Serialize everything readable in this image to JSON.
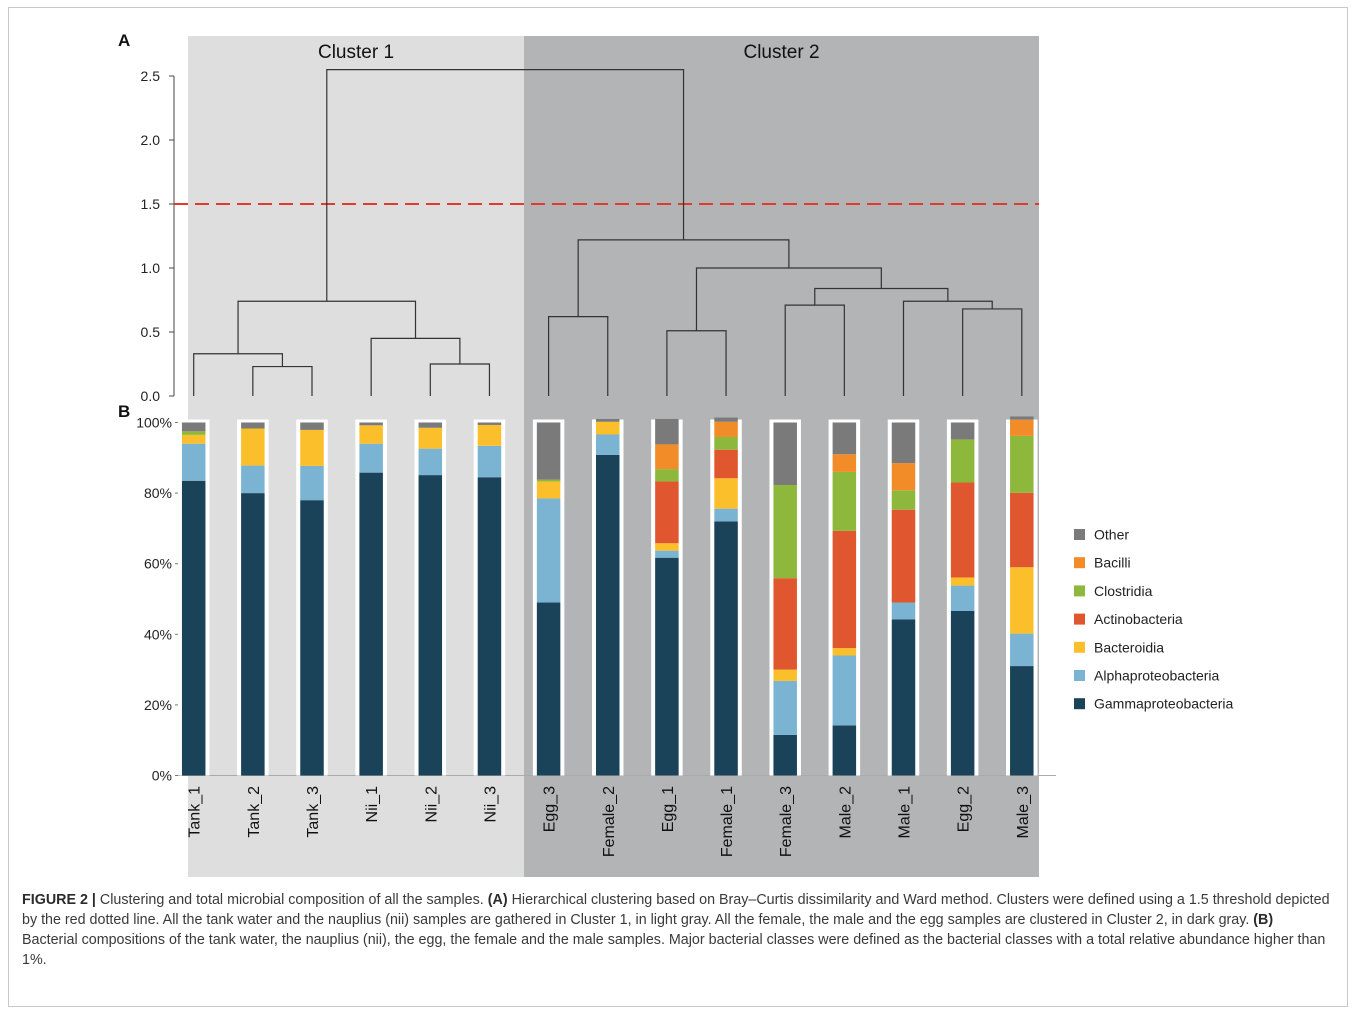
{
  "panel_labels": {
    "a": "A",
    "b": "B"
  },
  "caption": {
    "label": "FIGURE 2",
    "separator": "|",
    "s1": "Clustering and total microbial composition of all the samples.",
    "a_tag": "(A)",
    "s2": "Hierarchical clustering based on Bray–Curtis dissimilarity and Ward method. Clusters were defined using a 1.5 threshold depicted by the red dotted line. All the tank water and the nauplius (nii) samples are gathered in Cluster 1, in light gray. All the female, the male and the egg samples are clustered in Cluster 2, in dark gray.",
    "b_tag": "(B)",
    "s3": "Bacterial compositions of the tank water, the nauplius (nii), the egg, the female and the male samples. Major bacterial classes were defined as the bacterial classes with a total relative abundance higher than 1%."
  },
  "colors": {
    "cluster1_bg": "#dedede",
    "cluster2_bg": "#b2b4b6",
    "threshold": "#e03b2e",
    "Other": "#7a7a7a",
    "Bacilli": "#f28c28",
    "Clostridia": "#8db83c",
    "Actinobacteria": "#e0572f",
    "Bacteroidia": "#fbbf2c",
    "Alphaproteobacteria": "#7ab4d2",
    "Gammaproteobacteria": "#1a4259"
  },
  "chart_data": [
    {
      "type": "dendrogram",
      "panel": "A",
      "clusters": [
        {
          "name": "Cluster 1",
          "samples": [
            "Tank_1",
            "Tank_2",
            "Tank_3",
            "Nii_1",
            "Nii_2",
            "Nii_3"
          ]
        },
        {
          "name": "Cluster 2",
          "samples": [
            "Egg_3",
            "Female_2",
            "Egg_1",
            "Female_1",
            "Female_3",
            "Male_2",
            "Male_1",
            "Egg_2",
            "Male_3"
          ]
        }
      ],
      "yticks": [
        "0.0",
        "0.5",
        "1.0",
        "1.5",
        "2.0",
        "2.5"
      ],
      "ylim": [
        0,
        2.55
      ],
      "threshold": 1.5,
      "merges": [
        {
          "left": 1,
          "right": 2,
          "height": 0.23
        },
        {
          "left": 0,
          "right": "m0",
          "height": 0.33
        },
        {
          "left": 4,
          "right": 5,
          "height": 0.25
        },
        {
          "left": 3,
          "right": "m2",
          "height": 0.45
        },
        {
          "left": "m1",
          "right": "m3",
          "height": 0.74
        },
        {
          "left": 6,
          "right": 7,
          "height": 0.62
        },
        {
          "left": 8,
          "right": 9,
          "height": 0.51
        },
        {
          "left": 10,
          "right": 11,
          "height": 0.71
        },
        {
          "left": 13,
          "right": 14,
          "height": 0.68
        },
        {
          "left": 12,
          "right": "m8",
          "height": 0.74
        },
        {
          "left": "m7",
          "right": "m9",
          "height": 0.84
        },
        {
          "left": "m6",
          "right": "m10",
          "height": 1.0
        },
        {
          "left": "m5",
          "right": "m11",
          "height": 1.22
        },
        {
          "left": "m4",
          "right": "m12",
          "height": 2.55
        }
      ]
    },
    {
      "type": "bar",
      "stacked": true,
      "panel": "B",
      "categories": [
        "Tank_1",
        "Tank_2",
        "Tank_3",
        "Nii_1",
        "Nii_2",
        "Nii_3",
        "Egg_3",
        "Female_2",
        "Egg_1",
        "Female_1",
        "Female_3",
        "Male_2",
        "Male_1",
        "Egg_2",
        "Male_3"
      ],
      "yticks": [
        "0%",
        "20%",
        "40%",
        "60%",
        "80%",
        "100%"
      ],
      "ylim": [
        0,
        100
      ],
      "legend_position": "right",
      "series": [
        {
          "name": "Gammaproteobacteria",
          "values": [
            83.5,
            80,
            78,
            85.8,
            85.1,
            84.5,
            49,
            90.8,
            61.7,
            72,
            11.5,
            14.2,
            44.2,
            46.6,
            31
          ]
        },
        {
          "name": "Alphaproteobacteria",
          "values": [
            10.5,
            7.8,
            9.7,
            8.2,
            7.5,
            8.9,
            29.5,
            5.8,
            2,
            3.6,
            15.3,
            19.8,
            4.8,
            7.2,
            9.2
          ]
        },
        {
          "name": "Bacteroidia",
          "values": [
            2.5,
            10.5,
            10.2,
            5.2,
            5.9,
            5.9,
            4.8,
            3.6,
            2.1,
            8.6,
            3.2,
            2.1,
            0,
            2.3,
            18.8
          ]
        },
        {
          "name": "Actinobacteria",
          "values": [
            0,
            0,
            0,
            0,
            0,
            0,
            0,
            0,
            17.5,
            8.1,
            25.9,
            33.2,
            26.3,
            26.9,
            21.1
          ]
        },
        {
          "name": "Clostridia",
          "values": [
            1,
            0,
            0,
            0,
            0,
            0,
            0.5,
            0,
            3.5,
            3.6,
            26.4,
            16.7,
            5.5,
            12.2,
            16.1
          ]
        },
        {
          "name": "Bacilli",
          "values": [
            0,
            0,
            0,
            0,
            0,
            0,
            0,
            0,
            7,
            4.3,
            0,
            5,
            7.7,
            0,
            4.6
          ]
        },
        {
          "name": "Other",
          "values": [
            2.5,
            1.7,
            2.1,
            0.8,
            1.5,
            0.7,
            16.2,
            0.8,
            7.2,
            1.2,
            17.7,
            9,
            11.5,
            4.8,
            0.9
          ]
        }
      ],
      "legend_order": [
        "Other",
        "Bacilli",
        "Clostridia",
        "Actinobacteria",
        "Bacteroidia",
        "Alphaproteobacteria",
        "Gammaproteobacteria"
      ]
    }
  ]
}
